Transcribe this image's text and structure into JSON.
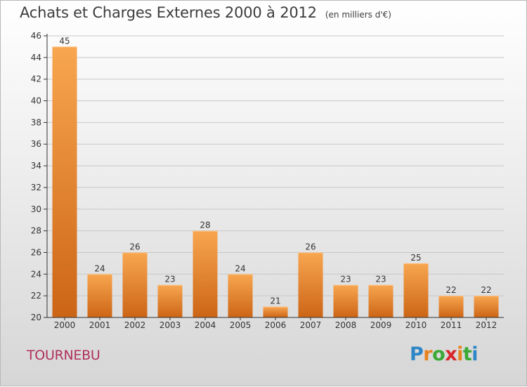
{
  "title": "Achats et Charges Externes 2000 à 2012",
  "unit_note": "(en milliers d'€)",
  "commune": "TOURNEBU",
  "logo": {
    "text": "Proxiti",
    "letter_colors": [
      "#2f86c6",
      "#e8821e",
      "#3aa935",
      "#d9262c",
      "#e8821e",
      "#3aa935",
      "#2f86c6"
    ]
  },
  "colors": {
    "bar_top": "#f8a650",
    "bar_bottom": "#cc6516",
    "axis": "#333333",
    "grid": "#c8c8c8",
    "title": "#3d3d3d",
    "commune": "#b0305a"
  },
  "chart_data": {
    "type": "bar",
    "title": "Achats et Charges Externes 2000 à 2012",
    "subtitle": "(en milliers d'€)",
    "xlabel": "",
    "ylabel": "",
    "categories": [
      "2000",
      "2001",
      "2002",
      "2003",
      "2004",
      "2005",
      "2006",
      "2007",
      "2008",
      "2009",
      "2010",
      "2011",
      "2012"
    ],
    "values": [
      45,
      24,
      26,
      23,
      28,
      24,
      21,
      26,
      23,
      23,
      25,
      22,
      22
    ],
    "ylim": [
      20,
      46
    ],
    "yticks": [
      20,
      22,
      24,
      26,
      28,
      30,
      32,
      34,
      36,
      38,
      40,
      42,
      44,
      46
    ],
    "grid": true,
    "data_labels": true,
    "legend": "none"
  }
}
